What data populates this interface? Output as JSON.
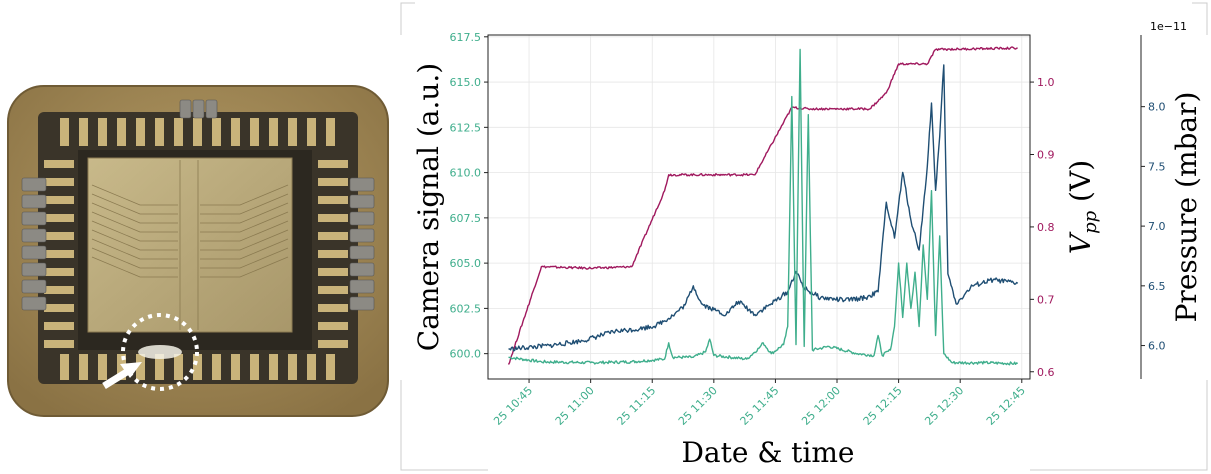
{
  "colors": {
    "camera": "#3fae8c",
    "vpp": "#a0195e",
    "pressure": "#1f4e73",
    "grid": "#e6e6e6",
    "chip_frame": "#9c8450",
    "chip_die": "#b9a877"
  },
  "photo": {
    "arrow_icon": "white-arrow",
    "highlight": "dashed-circle"
  },
  "chart_data": {
    "type": "line",
    "xlabel": "Date & time",
    "x_range": [
      "2025-10-25 10:35",
      "2025-10-25 12:47"
    ],
    "x_ticks": [
      "25 10:45",
      "25 11:00",
      "25 11:15",
      "25 11:30",
      "25 11:45",
      "25 12:00",
      "25 12:15",
      "25 12:30",
      "25 12:45"
    ],
    "axes": [
      {
        "ylabel": "Camera signal (a.u.)",
        "side": "left",
        "ylim": [
          598.6,
          617.6
        ],
        "ticks": [
          "600.0",
          "602.5",
          "605.0",
          "607.5",
          "610.0",
          "612.5",
          "615.0",
          "617.5"
        ],
        "tick_values": [
          600,
          602.5,
          605,
          607.5,
          610,
          612.5,
          615,
          617.5
        ]
      },
      {
        "ylabel_main": "V",
        "ylabel_sub": "pp",
        "ylabel_unit": " (V)",
        "side": "right",
        "ylim": [
          0.59,
          1.065
        ],
        "ticks": [
          "0.6",
          "0.7",
          "0.8",
          "0.9",
          "1.0"
        ],
        "tick_values": [
          0.6,
          0.7,
          0.8,
          0.9,
          1.0
        ]
      },
      {
        "ylabel": "Pressure (mbar)",
        "side": "right-outer",
        "offset_text": "1e−11",
        "ylim": [
          5.72,
          8.6
        ],
        "ticks": [
          "6.0",
          "6.5",
          "7.0",
          "7.5",
          "8.0"
        ],
        "tick_values": [
          6.0,
          6.5,
          7.0,
          7.5,
          8.0
        ]
      }
    ],
    "series": [
      {
        "axis": 0,
        "points": [
          [
            "2025-10-25 10:40",
            599.8
          ],
          [
            "2025-10-25 10:48",
            599.55
          ],
          [
            "2025-10-25 11:00",
            599.5
          ],
          [
            "2025-10-25 11:10",
            599.55
          ],
          [
            "2025-10-25 11:18",
            599.7
          ],
          [
            "2025-10-25 11:19",
            600.6
          ],
          [
            "2025-10-25 11:20",
            599.8
          ],
          [
            "2025-10-25 11:25",
            599.8
          ],
          [
            "2025-10-25 11:28",
            600.1
          ],
          [
            "2025-10-25 11:29",
            600.8
          ],
          [
            "2025-10-25 11:30",
            599.9
          ],
          [
            "2025-10-25 11:38",
            599.7
          ],
          [
            "2025-10-25 11:41",
            600.3
          ],
          [
            "2025-10-25 11:42",
            600.6
          ],
          [
            "2025-10-25 11:44",
            600.0
          ],
          [
            "2025-10-25 11:47",
            600.5
          ],
          [
            "2025-10-25 11:48",
            601.5
          ],
          [
            "2025-10-25 11:49",
            614.2
          ],
          [
            "2025-10-25 11:50",
            600.5
          ],
          [
            "2025-10-25 11:51",
            616.8
          ],
          [
            "2025-10-25 11:52",
            600.4
          ],
          [
            "2025-10-25 11:53",
            613.2
          ],
          [
            "2025-10-25 11:54",
            600.2
          ],
          [
            "2025-10-25 11:58",
            600.4
          ],
          [
            "2025-10-25 12:05",
            600.0
          ],
          [
            "2025-10-25 12:09",
            599.9
          ],
          [
            "2025-10-25 12:10",
            601.0
          ],
          [
            "2025-10-25 12:11",
            599.9
          ],
          [
            "2025-10-25 12:13",
            600.2
          ],
          [
            "2025-10-25 12:14",
            601.5
          ],
          [
            "2025-10-25 12:15",
            605.0
          ],
          [
            "2025-10-25 12:16",
            602.0
          ],
          [
            "2025-10-25 12:17",
            605.0
          ],
          [
            "2025-10-25 12:18",
            602.5
          ],
          [
            "2025-10-25 12:19",
            604.5
          ],
          [
            "2025-10-25 12:20",
            601.5
          ],
          [
            "2025-10-25 12:21",
            606.0
          ],
          [
            "2025-10-25 12:22",
            603.0
          ],
          [
            "2025-10-25 12:23",
            609.0
          ],
          [
            "2025-10-25 12:24",
            601.0
          ],
          [
            "2025-10-25 12:25",
            606.5
          ],
          [
            "2025-10-25 12:26",
            600.0
          ],
          [
            "2025-10-25 12:28",
            599.5
          ],
          [
            "2025-10-25 12:36",
            599.5
          ],
          [
            "2025-10-25 12:44",
            599.45
          ]
        ]
      },
      {
        "axis": 1,
        "points": [
          [
            "2025-10-25 10:40",
            0.61
          ],
          [
            "2025-10-25 10:48",
            0.745
          ],
          [
            "2025-10-25 11:00",
            0.743
          ],
          [
            "2025-10-25 11:10",
            0.745
          ],
          [
            "2025-10-25 11:18",
            0.85
          ],
          [
            "2025-10-25 11:19",
            0.872
          ],
          [
            "2025-10-25 11:33",
            0.872
          ],
          [
            "2025-10-25 11:40",
            0.872
          ],
          [
            "2025-10-25 11:49",
            0.965
          ],
          [
            "2025-10-25 11:53",
            0.963
          ],
          [
            "2025-10-25 12:08",
            0.963
          ],
          [
            "2025-10-25 12:12",
            0.985
          ],
          [
            "2025-10-25 12:15",
            1.025
          ],
          [
            "2025-10-25 12:22",
            1.025
          ],
          [
            "2025-10-25 12:24",
            1.045
          ],
          [
            "2025-10-25 12:44",
            1.047
          ]
        ]
      },
      {
        "axis": 2,
        "points": [
          [
            "2025-10-25 10:40",
            5.97
          ],
          [
            "2025-10-25 10:50",
            6.0
          ],
          [
            "2025-10-25 10:58",
            6.04
          ],
          [
            "2025-10-25 11:06",
            6.12
          ],
          [
            "2025-10-25 11:12",
            6.14
          ],
          [
            "2025-10-25 11:16",
            6.17
          ],
          [
            "2025-10-25 11:20",
            6.25
          ],
          [
            "2025-10-25 11:23",
            6.34
          ],
          [
            "2025-10-25 11:25",
            6.5
          ],
          [
            "2025-10-25 11:27",
            6.35
          ],
          [
            "2025-10-25 11:30",
            6.3
          ],
          [
            "2025-10-25 11:33",
            6.26
          ],
          [
            "2025-10-25 11:36",
            6.37
          ],
          [
            "2025-10-25 11:40",
            6.26
          ],
          [
            "2025-10-25 11:44",
            6.35
          ],
          [
            "2025-10-25 11:48",
            6.45
          ],
          [
            "2025-10-25 11:50",
            6.62
          ],
          [
            "2025-10-25 11:52",
            6.48
          ],
          [
            "2025-10-25 11:56",
            6.4
          ],
          [
            "2025-10-25 12:02",
            6.38
          ],
          [
            "2025-10-25 12:07",
            6.4
          ],
          [
            "2025-10-25 12:10",
            6.45
          ],
          [
            "2025-10-25 12:12",
            7.2
          ],
          [
            "2025-10-25 12:14",
            6.9
          ],
          [
            "2025-10-25 12:16",
            7.45
          ],
          [
            "2025-10-25 12:18",
            7.05
          ],
          [
            "2025-10-25 12:20",
            6.8
          ],
          [
            "2025-10-25 12:22",
            7.5
          ],
          [
            "2025-10-25 12:23",
            8.03
          ],
          [
            "2025-10-25 12:24",
            7.3
          ],
          [
            "2025-10-25 12:25",
            7.75
          ],
          [
            "2025-10-25 12:26",
            8.35
          ],
          [
            "2025-10-25 12:27",
            6.6
          ],
          [
            "2025-10-25 12:29",
            6.35
          ],
          [
            "2025-10-25 12:33",
            6.5
          ],
          [
            "2025-10-25 12:38",
            6.55
          ],
          [
            "2025-10-25 12:44",
            6.52
          ]
        ]
      }
    ]
  }
}
